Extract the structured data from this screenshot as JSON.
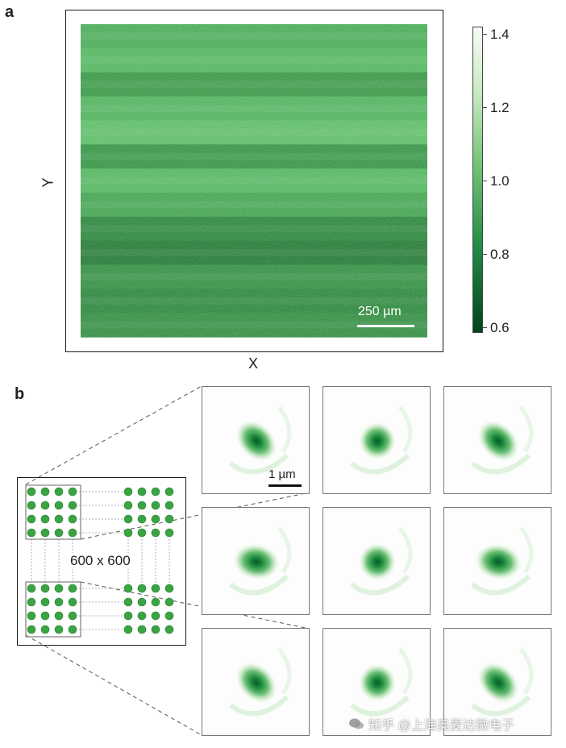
{
  "panel_a": {
    "letter": "a",
    "x_label": "X",
    "y_label": "Y",
    "scale_bar": "250 µm",
    "colorbar": {
      "ticks": [
        "1.4",
        "1.2",
        "1.0",
        "0.8",
        "0.6"
      ],
      "range": [
        0.6,
        1.4
      ],
      "colors": [
        "#f7fcf5",
        "#c7e9c0",
        "#74c476",
        "#238b45",
        "#00441b"
      ]
    },
    "stripe_rows": 13
  },
  "panel_b": {
    "letter": "b",
    "array_label": "600 x 600",
    "scale_bar": "1 µm",
    "psf_tiles": [
      {
        "name": "psf-r1c1",
        "orientation": "diagonal"
      },
      {
        "name": "psf-r1c2",
        "orientation": "round"
      },
      {
        "name": "psf-r1c3",
        "orientation": "diagonal"
      },
      {
        "name": "psf-r2c1",
        "orientation": "horizontal"
      },
      {
        "name": "psf-r2c2",
        "orientation": "round"
      },
      {
        "name": "psf-r2c3",
        "orientation": "horizontal"
      },
      {
        "name": "psf-r3c1",
        "orientation": "diagonal"
      },
      {
        "name": "psf-r3c2",
        "orientation": "round"
      },
      {
        "name": "psf-r3c3",
        "orientation": "diagonal"
      }
    ]
  },
  "watermark": "知乎 @上海奥麦达微电子"
}
